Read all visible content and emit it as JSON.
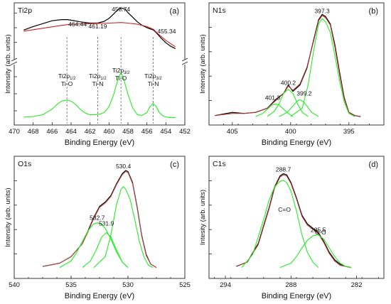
{
  "chart_data": [
    {
      "type": "line",
      "panel": "(a)",
      "element": "Ti2p",
      "xlabel": "Binding Energy (eV)",
      "ylabel": "Intensity (arb. units)",
      "xlim": [
        470,
        452
      ],
      "xticks": [
        470,
        468,
        466,
        464,
        462,
        460,
        458,
        456,
        454,
        452
      ],
      "broken_y_axis": true,
      "peak_labels": [
        {
          "text": "464.44",
          "x": 464.44
        },
        {
          "text": "461.19",
          "x": 461.19
        },
        {
          "text": "458.74",
          "x": 458.74
        },
        {
          "text": "455.34",
          "x": 455.34
        }
      ],
      "annotations": [
        {
          "line1": "Ti2p",
          "sub": "1/2",
          "line2": "Ti-O",
          "x": 464.44
        },
        {
          "line1": "Ti2p",
          "sub": "1/2",
          "line2": "Ti-N",
          "x": 461.19
        },
        {
          "line1": "Ti2p",
          "sub": "3/2",
          "line2": "Ti-O",
          "x": 458.74
        },
        {
          "line1": "Ti2p",
          "sub": "3/2",
          "line2": "Ti-N",
          "x": 455.34
        }
      ],
      "series": [
        {
          "role": "measured",
          "color": "#000000",
          "x": [
            469,
            468,
            467,
            466,
            465,
            464.4,
            464,
            463,
            462,
            461.2,
            460.5,
            460,
            459.5,
            459,
            458.7,
            458.3,
            458,
            457.5,
            457,
            456.5,
            456,
            455.3,
            455,
            454.5,
            454,
            453.5,
            453
          ],
          "y": [
            0.62,
            0.68,
            0.73,
            0.78,
            0.8,
            0.8,
            0.79,
            0.76,
            0.74,
            0.74,
            0.77,
            0.82,
            0.9,
            0.98,
            1.0,
            0.98,
            0.92,
            0.84,
            0.76,
            0.7,
            0.66,
            0.62,
            0.57,
            0.48,
            0.4,
            0.34,
            0.3
          ]
        },
        {
          "role": "envelope",
          "color": "#cc2222",
          "x": [
            469,
            467,
            465,
            464,
            462,
            460,
            458.7,
            458,
            457,
            456,
            455.3,
            455,
            454,
            453
          ],
          "y": [
            0.6,
            0.65,
            0.7,
            0.72,
            0.73,
            0.74,
            0.75,
            0.74,
            0.72,
            0.68,
            0.63,
            0.58,
            0.44,
            0.33
          ]
        },
        {
          "role": "fit",
          "color": "#22ee22",
          "x": [
            469,
            468,
            467,
            466,
            465.5,
            465,
            464.4,
            464,
            463.5,
            463,
            462.5,
            462,
            461.5,
            461.2,
            461,
            460.5,
            460,
            459.5,
            459,
            458.74,
            458.5,
            458,
            457.5,
            457,
            456.5,
            456,
            455.7,
            455.34,
            455,
            454.7,
            454.3,
            454,
            453.5,
            453
          ],
          "y": [
            0.02,
            0.03,
            0.06,
            0.16,
            0.24,
            0.3,
            0.32,
            0.3,
            0.24,
            0.15,
            0.09,
            0.06,
            0.06,
            0.07,
            0.07,
            0.1,
            0.2,
            0.42,
            0.72,
            0.8,
            0.72,
            0.42,
            0.18,
            0.06,
            0.05,
            0.1,
            0.2,
            0.26,
            0.2,
            0.1,
            0.04,
            0.02,
            0.01,
            0.01
          ]
        }
      ]
    },
    {
      "type": "line",
      "panel": "(b)",
      "element": "N1s",
      "xlabel": "Binding Energy (eV)",
      "ylabel": "Intensity (arb. units)",
      "xlim": [
        407,
        392
      ],
      "xticks": [
        405,
        400,
        395
      ],
      "peak_labels": [
        {
          "text": "397.3",
          "x": 397.3
        },
        {
          "text": "400.2",
          "x": 400.2
        },
        {
          "text": "401.3",
          "x": 401.3
        },
        {
          "text": "399.2",
          "x": 399.2
        }
      ],
      "series": [
        {
          "role": "measured",
          "color": "#000000",
          "x": [
            406.5,
            405,
            404,
            403,
            402,
            401.3,
            400.6,
            400.2,
            399.8,
            399.2,
            398.6,
            398,
            397.6,
            397.3,
            397,
            396.6,
            396.2,
            395.8,
            395.4,
            395,
            394.5,
            394
          ],
          "y": [
            0.01,
            0.04,
            0.03,
            0.04,
            0.08,
            0.16,
            0.22,
            0.3,
            0.24,
            0.3,
            0.46,
            0.74,
            0.92,
            0.97,
            0.95,
            0.88,
            0.68,
            0.42,
            0.18,
            0.04,
            0.01,
            0.0
          ]
        },
        {
          "role": "envelope",
          "color": "#aa3333",
          "x": [
            406.5,
            405,
            404,
            403,
            402,
            401.3,
            400.6,
            400.2,
            399.8,
            399.2,
            398.6,
            398,
            397.6,
            397.3,
            397,
            396.6,
            396.2,
            395.8,
            395.4,
            395,
            394.5,
            394
          ],
          "y": [
            0.01,
            0.03,
            0.03,
            0.04,
            0.08,
            0.15,
            0.22,
            0.29,
            0.25,
            0.31,
            0.47,
            0.73,
            0.91,
            0.96,
            0.94,
            0.87,
            0.66,
            0.4,
            0.17,
            0.04,
            0.01,
            0.0
          ]
        },
        {
          "role": "fit-397.3",
          "color": "#22ee22",
          "x": [
            400,
            399,
            398.5,
            398,
            397.6,
            397.3,
            397,
            396.6,
            396.2,
            395.8,
            395.4,
            395,
            394.5
          ],
          "y": [
            0.0,
            0.08,
            0.3,
            0.64,
            0.88,
            0.93,
            0.9,
            0.8,
            0.58,
            0.34,
            0.14,
            0.03,
            0.0
          ]
        },
        {
          "role": "fit-400.2",
          "color": "#22ee22",
          "x": [
            402,
            401.4,
            401,
            400.6,
            400.2,
            399.8,
            399.4,
            399,
            398.5
          ],
          "y": [
            0.0,
            0.05,
            0.12,
            0.22,
            0.26,
            0.22,
            0.12,
            0.04,
            0.0
          ]
        },
        {
          "role": "fit-401.3",
          "color": "#22ee22",
          "x": [
            403,
            402.4,
            402,
            401.6,
            401.3,
            401,
            400.6,
            400.2,
            399.8
          ],
          "y": [
            0.0,
            0.03,
            0.07,
            0.11,
            0.12,
            0.11,
            0.07,
            0.03,
            0.0
          ]
        },
        {
          "role": "fit-399.2",
          "color": "#22ee22",
          "x": [
            401,
            400.3,
            399.8,
            399.5,
            399.2,
            398.9,
            398.6,
            398.2,
            397.6
          ],
          "y": [
            0.0,
            0.04,
            0.1,
            0.14,
            0.16,
            0.14,
            0.1,
            0.04,
            0.0
          ]
        }
      ]
    },
    {
      "type": "line",
      "panel": "(c)",
      "element": "O1s",
      "xlabel": "Binding Energy (eV)",
      "ylabel": "Intensity (arb. units)",
      "xlim": [
        540,
        525
      ],
      "xticks": [
        540,
        535,
        530,
        525
      ],
      "peak_labels": [
        {
          "text": "530.4",
          "x": 530.4
        },
        {
          "text": "532.7",
          "x": 532.7
        },
        {
          "text": "531.9",
          "x": 531.9
        }
      ],
      "series": [
        {
          "role": "measured",
          "color": "#000000",
          "x": [
            537.5,
            537,
            536,
            535,
            534,
            533.5,
            533,
            532.5,
            532,
            531.5,
            531,
            530.5,
            530.2,
            530,
            529.6,
            529.2,
            528.8,
            528.4,
            528,
            527.5
          ],
          "y": [
            0.01,
            0.02,
            0.04,
            0.1,
            0.22,
            0.34,
            0.46,
            0.56,
            0.6,
            0.66,
            0.77,
            0.86,
            0.89,
            0.88,
            0.78,
            0.56,
            0.3,
            0.12,
            0.03,
            0.0
          ]
        },
        {
          "role": "envelope",
          "color": "#bb5555",
          "x": [
            537.5,
            537,
            536,
            535,
            534,
            533.5,
            533,
            532.5,
            532,
            531.5,
            531,
            530.5,
            530.2,
            530,
            529.6,
            529.2,
            528.8,
            528.4,
            528,
            527.5
          ],
          "y": [
            0.01,
            0.02,
            0.04,
            0.1,
            0.22,
            0.33,
            0.45,
            0.55,
            0.59,
            0.65,
            0.76,
            0.85,
            0.88,
            0.87,
            0.77,
            0.55,
            0.29,
            0.11,
            0.03,
            0.0
          ]
        },
        {
          "role": "fit-530.4",
          "color": "#22ee22",
          "x": [
            533,
            532,
            531.5,
            531,
            530.6,
            530.4,
            530.2,
            529.8,
            529.4,
            529,
            528.6,
            528.2,
            527.8
          ],
          "y": [
            0.0,
            0.1,
            0.3,
            0.58,
            0.72,
            0.74,
            0.72,
            0.62,
            0.44,
            0.24,
            0.1,
            0.02,
            0.0
          ]
        },
        {
          "role": "fit-532.7",
          "color": "#22ee22",
          "x": [
            536,
            535,
            534.5,
            534,
            533.5,
            533,
            532.7,
            532.4,
            532,
            531.5,
            531,
            530.5,
            530
          ],
          "y": [
            0.0,
            0.06,
            0.14,
            0.24,
            0.34,
            0.4,
            0.41,
            0.4,
            0.36,
            0.26,
            0.14,
            0.05,
            0.0
          ]
        },
        {
          "role": "fit-531.9",
          "color": "#22ee22",
          "x": [
            534,
            533.3,
            532.8,
            532.3,
            531.9,
            531.5,
            531,
            530.5,
            530
          ],
          "y": [
            0.0,
            0.06,
            0.16,
            0.28,
            0.32,
            0.28,
            0.16,
            0.05,
            0.0
          ]
        }
      ]
    },
    {
      "type": "line",
      "panel": "(d)",
      "element": "C1s",
      "xlabel": "Binding Energy (eV)",
      "ylabel": "Intesity (arb. units)",
      "xlim": [
        295.5,
        279.5
      ],
      "xticks": [
        294,
        288,
        282
      ],
      "peak_labels": [
        {
          "text": "288.7",
          "x": 288.7
        },
        {
          "text": "285.5",
          "x": 285.5
        }
      ],
      "annotations": [
        {
          "text": "C=O",
          "x": 288.6
        },
        {
          "text": "C-O",
          "x": 285.3
        }
      ],
      "series": [
        {
          "role": "measured",
          "color": "#000000",
          "x": [
            293,
            292,
            291,
            290,
            289.5,
            289,
            288.7,
            288.4,
            288,
            287.5,
            287,
            286.5,
            286,
            285.5,
            285,
            284.5,
            284,
            283.5,
            283,
            282.5
          ],
          "y": [
            0.01,
            0.05,
            0.22,
            0.55,
            0.74,
            0.84,
            0.86,
            0.85,
            0.78,
            0.64,
            0.48,
            0.4,
            0.36,
            0.32,
            0.24,
            0.14,
            0.07,
            0.03,
            0.01,
            0.0
          ]
        },
        {
          "role": "envelope",
          "color": "#aa3333",
          "x": [
            293,
            292,
            291,
            290,
            289.5,
            289,
            288.7,
            288.4,
            288,
            287.5,
            287,
            286.5,
            286,
            285.5,
            285,
            284.5,
            284,
            283.5,
            283,
            282.5
          ],
          "y": [
            0.01,
            0.05,
            0.21,
            0.54,
            0.73,
            0.83,
            0.85,
            0.84,
            0.77,
            0.63,
            0.47,
            0.39,
            0.35,
            0.31,
            0.23,
            0.13,
            0.06,
            0.02,
            0.01,
            0.0
          ]
        },
        {
          "role": "fit-288.7",
          "color": "#22ee22",
          "x": [
            292.5,
            291.5,
            290.5,
            290,
            289.5,
            289,
            288.7,
            288.4,
            288,
            287.5,
            287,
            286.5,
            286,
            285.5
          ],
          "y": [
            0.0,
            0.12,
            0.44,
            0.62,
            0.74,
            0.79,
            0.8,
            0.78,
            0.7,
            0.52,
            0.3,
            0.14,
            0.05,
            0.0
          ]
        },
        {
          "role": "fit-285.5",
          "color": "#22ee22",
          "x": [
            289,
            288,
            287.5,
            287,
            286.5,
            286,
            285.5,
            285,
            284.5,
            284,
            283.5,
            283,
            282.5
          ],
          "y": [
            0.0,
            0.04,
            0.1,
            0.18,
            0.25,
            0.29,
            0.3,
            0.26,
            0.18,
            0.1,
            0.04,
            0.01,
            0.0
          ]
        }
      ]
    }
  ]
}
